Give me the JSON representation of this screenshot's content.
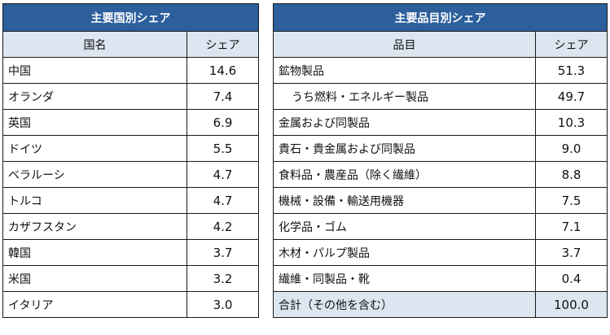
{
  "country_table": {
    "title": "主要国別シェア",
    "headers": {
      "name": "国名",
      "share": "シェア"
    },
    "rows": [
      {
        "name": "中国",
        "share": "14.6"
      },
      {
        "name": "オランダ",
        "share": "7.4"
      },
      {
        "name": "英国",
        "share": "6.9"
      },
      {
        "name": "ドイツ",
        "share": "5.5"
      },
      {
        "name": "ベラルーシ",
        "share": "4.7"
      },
      {
        "name": "トルコ",
        "share": "4.7"
      },
      {
        "name": "カザフスタン",
        "share": "4.2"
      },
      {
        "name": "韓国",
        "share": "3.7"
      },
      {
        "name": "米国",
        "share": "3.2"
      },
      {
        "name": "イタリア",
        "share": "3.0"
      }
    ]
  },
  "product_table": {
    "title": "主要品目別シェア",
    "headers": {
      "name": "品目",
      "share": "シェア"
    },
    "rows": [
      {
        "name": "鉱物製品",
        "share": "51.3"
      },
      {
        "name": "うち燃料・エネルギー製品",
        "share": "49.7"
      },
      {
        "name": "金属および同製品",
        "share": "10.3"
      },
      {
        "name": "貴石・貴金属および同製品",
        "share": "9.0"
      },
      {
        "name": "食料品・農産品（除く繊維）",
        "share": "8.8"
      },
      {
        "name": "機械・設備・輸送用機器",
        "share": "7.5"
      },
      {
        "name": "化学品・ゴム",
        "share": "7.1"
      },
      {
        "name": "木材・パルプ製品",
        "share": "3.7"
      },
      {
        "name": "繊維・同製品・靴",
        "share": "0.4"
      }
    ],
    "total": {
      "name": "合計（その他を含む）",
      "share": "100.0"
    }
  }
}
